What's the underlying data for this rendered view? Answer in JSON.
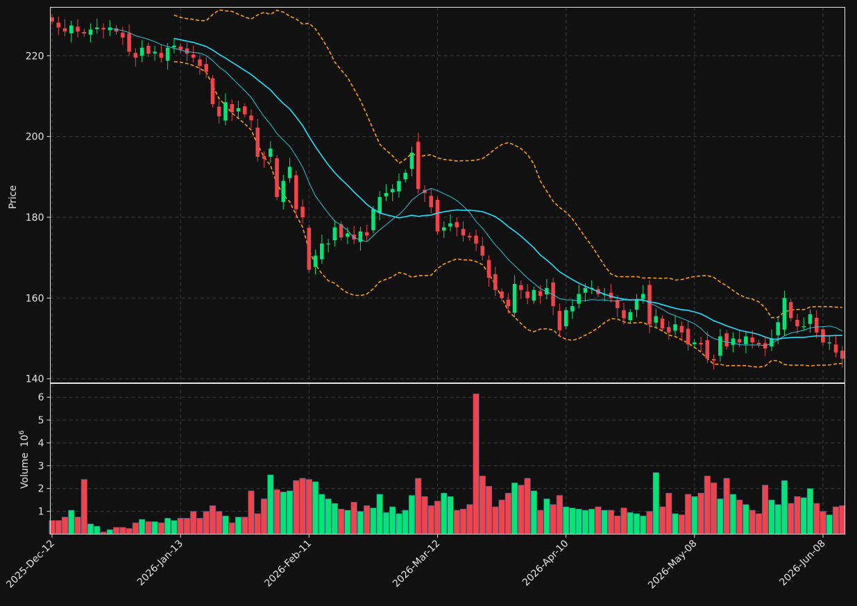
{
  "chart_data": {
    "type": "candlestick",
    "ylabel_price": "Price",
    "ylabel_volume": "Volume",
    "volume_exponent": "6",
    "price_ylim": [
      139,
      232
    ],
    "price_yticks": [
      140,
      160,
      180,
      200,
      220
    ],
    "volume_ylim": [
      0,
      6.6
    ],
    "volume_yticks": [
      1,
      2,
      3,
      4,
      5,
      6
    ],
    "x_ticks": [
      {
        "index": 0,
        "label": "2025-Dec-12"
      },
      {
        "index": 20,
        "label": "2026-Jan-13"
      },
      {
        "index": 40,
        "label": "2026-Feb-11"
      },
      {
        "index": 60,
        "label": "2026-Mar-12"
      },
      {
        "index": 80,
        "label": "2026-Apr-10"
      },
      {
        "index": 100,
        "label": "2026-May-08"
      },
      {
        "index": 120,
        "label": "2026-Jun-08"
      }
    ],
    "colors": {
      "up": "#00e676",
      "down": "#f0434b",
      "ma_long": "#1ee3ff",
      "ma_short": "#26c6da",
      "bollinger": "#ffa000",
      "background": "#111111",
      "grid": "#3a3a3a"
    },
    "series": [
      {
        "name": "close",
        "values": [
          228.5,
          227.0,
          226.0,
          227.5,
          226.0,
          225.5,
          226.5,
          227.0,
          226.5,
          227.0,
          226.0,
          224.5,
          221.0,
          219.5,
          222.0,
          220.5,
          221.0,
          219.5,
          222.0,
          222.5,
          221.5,
          220.5,
          219.5,
          217.5,
          216.0,
          208.0,
          205.0,
          208.5,
          206.0,
          207.0,
          205.5,
          204.0,
          195.0,
          194.5,
          197.0,
          185.0,
          189.0,
          192.5,
          182.0,
          180.0,
          167.0,
          170.5,
          173.5,
          173.5,
          177.5,
          175.0,
          176.0,
          174.5,
          176.5,
          175.5,
          182.0,
          185.0,
          186.0,
          187.0,
          189.0,
          191.0,
          196.0,
          187.0,
          186.0,
          182.5,
          176.5,
          177.5,
          178.5,
          177.5,
          175.5,
          175.0,
          173.5,
          170.5,
          165.0,
          162.0,
          160.0,
          158.0,
          163.5,
          162.0,
          160.0,
          162.0,
          160.5,
          162.5,
          158.0,
          152.0,
          157.0,
          158.0,
          161.0,
          162.5,
          162.5,
          161.0,
          161.0,
          160.0,
          157.5,
          155.0,
          156.5,
          159.5,
          161.0,
          153.5,
          155.5,
          152.5,
          151.5,
          153.5,
          151.5,
          148.5,
          149.0,
          148.5,
          145.0,
          144.5,
          150.5,
          148.0,
          150.0,
          149.0,
          150.5,
          149.0,
          148.5,
          147.5,
          150.0,
          154.0,
          160.0,
          155.0,
          153.0,
          153.0,
          156.0,
          151.5,
          149.0,
          149.0,
          146.5,
          145.0
        ]
      },
      {
        "name": "volume_millions",
        "values": [
          0.6,
          0.6,
          0.75,
          1.05,
          0.75,
          2.4,
          0.45,
          0.35,
          0.1,
          0.2,
          0.3,
          0.3,
          0.25,
          0.5,
          0.65,
          0.55,
          0.55,
          0.5,
          0.7,
          0.6,
          0.7,
          0.7,
          1.0,
          0.7,
          1.0,
          1.25,
          1.0,
          0.8,
          0.5,
          0.75,
          0.75,
          1.9,
          0.9,
          1.55,
          2.6,
          1.95,
          1.85,
          1.9,
          2.35,
          2.45,
          2.4,
          2.3,
          1.75,
          1.55,
          1.35,
          1.1,
          1.05,
          1.4,
          1.0,
          1.25,
          1.15,
          1.75,
          0.95,
          1.2,
          0.9,
          1.05,
          1.7,
          2.45,
          1.65,
          1.25,
          1.45,
          1.8,
          1.65,
          1.05,
          1.1,
          1.3,
          6.15,
          2.55,
          2.1,
          1.2,
          1.5,
          1.8,
          2.25,
          2.15,
          2.45,
          1.9,
          1.05,
          1.55,
          1.3,
          1.7,
          1.2,
          1.15,
          1.1,
          1.05,
          1.1,
          1.2,
          1.05,
          1.05,
          0.8,
          1.15,
          0.95,
          0.9,
          0.8,
          1.0,
          2.7,
          1.2,
          1.8,
          0.9,
          0.85,
          1.75,
          1.65,
          1.8,
          2.55,
          2.25,
          1.55,
          2.45,
          1.75,
          1.5,
          1.3,
          1.05,
          0.9,
          2.15,
          1.5,
          1.3,
          2.35,
          1.35,
          1.65,
          1.6,
          2.0,
          1.35,
          1.0,
          0.85,
          1.2,
          1.25
        ]
      }
    ]
  }
}
